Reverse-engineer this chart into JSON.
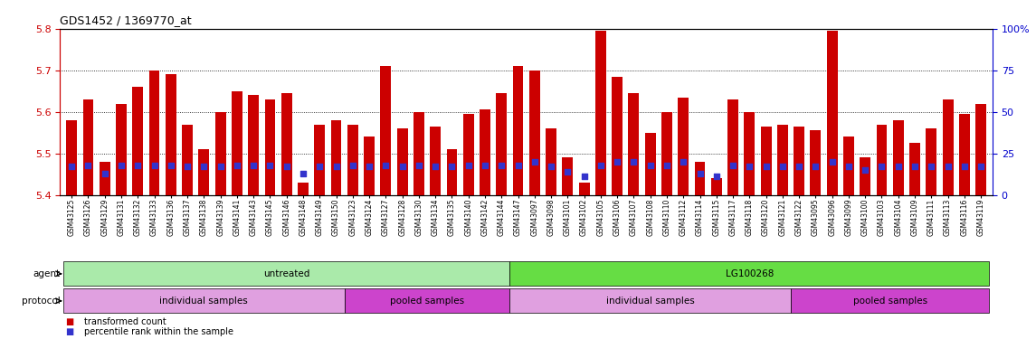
{
  "title": "GDS1452 / 1369770_at",
  "ylim_left": [
    5.4,
    5.8
  ],
  "ylim_right": [
    0,
    100
  ],
  "yticks_left": [
    5.4,
    5.5,
    5.6,
    5.7,
    5.8
  ],
  "yticks_right": [
    0,
    25,
    50,
    75,
    100
  ],
  "bar_color": "#cc0000",
  "dot_color": "#3333cc",
  "samples": [
    "GSM43125",
    "GSM43126",
    "GSM43129",
    "GSM43131",
    "GSM43132",
    "GSM43133",
    "GSM43136",
    "GSM43137",
    "GSM43138",
    "GSM43139",
    "GSM43141",
    "GSM43143",
    "GSM43145",
    "GSM43146",
    "GSM43148",
    "GSM43149",
    "GSM43150",
    "GSM43123",
    "GSM43124",
    "GSM43127",
    "GSM43128",
    "GSM43130",
    "GSM43134",
    "GSM43135",
    "GSM43140",
    "GSM43142",
    "GSM43144",
    "GSM43147",
    "GSM43097",
    "GSM43098",
    "GSM43101",
    "GSM43102",
    "GSM43105",
    "GSM43106",
    "GSM43107",
    "GSM43108",
    "GSM43110",
    "GSM43112",
    "GSM43114",
    "GSM43115",
    "GSM43117",
    "GSM43118",
    "GSM43120",
    "GSM43121",
    "GSM43122",
    "GSM43095",
    "GSM43096",
    "GSM43099",
    "GSM43100",
    "GSM43103",
    "GSM43104",
    "GSM43109",
    "GSM43111",
    "GSM43113",
    "GSM43116",
    "GSM43119"
  ],
  "bar_heights": [
    5.58,
    5.63,
    5.48,
    5.62,
    5.66,
    5.7,
    5.69,
    5.57,
    5.51,
    5.6,
    5.65,
    5.64,
    5.63,
    5.645,
    5.43,
    5.57,
    5.58,
    5.57,
    5.54,
    5.71,
    5.56,
    5.6,
    5.565,
    5.51,
    5.595,
    5.605,
    5.645,
    5.71,
    5.7,
    5.56,
    5.49,
    5.43,
    5.795,
    5.685,
    5.645,
    5.55,
    5.6,
    5.635,
    5.48,
    5.44,
    5.63,
    5.6,
    5.565,
    5.57,
    5.565,
    5.555,
    5.795,
    5.54,
    5.49,
    5.57,
    5.58,
    5.525,
    5.56,
    5.63,
    5.595,
    5.62
  ],
  "dot_values_pct": [
    17,
    18,
    13,
    18,
    18,
    18,
    18,
    17,
    17,
    17,
    18,
    18,
    18,
    17,
    13,
    17,
    17,
    18,
    17,
    18,
    17,
    18,
    17,
    17,
    18,
    18,
    18,
    18,
    20,
    17,
    14,
    11,
    18,
    20,
    20,
    18,
    18,
    20,
    13,
    11,
    18,
    17,
    17,
    17,
    17,
    17,
    20,
    17,
    15,
    17,
    17,
    17,
    17,
    17,
    17,
    17
  ],
  "groups": {
    "agent": [
      {
        "label": "untreated",
        "start": 0,
        "end": 27,
        "color": "#aaeaaa"
      },
      {
        "label": "LG100268",
        "start": 27,
        "end": 56,
        "color": "#66dd44"
      }
    ],
    "protocol": [
      {
        "label": "individual samples",
        "start": 0,
        "end": 17,
        "color": "#e0a0e0"
      },
      {
        "label": "pooled samples",
        "start": 17,
        "end": 27,
        "color": "#cc44cc"
      },
      {
        "label": "individual samples",
        "start": 27,
        "end": 44,
        "color": "#e0a0e0"
      },
      {
        "label": "pooled samples",
        "start": 44,
        "end": 56,
        "color": "#cc44cc"
      }
    ]
  },
  "legend": [
    {
      "label": "transformed count",
      "color": "#cc0000"
    },
    {
      "label": "percentile rank within the sample",
      "color": "#3333cc"
    }
  ],
  "background_color": "#ffffff",
  "left_axis_color": "#cc0000",
  "right_axis_color": "#0000cc"
}
